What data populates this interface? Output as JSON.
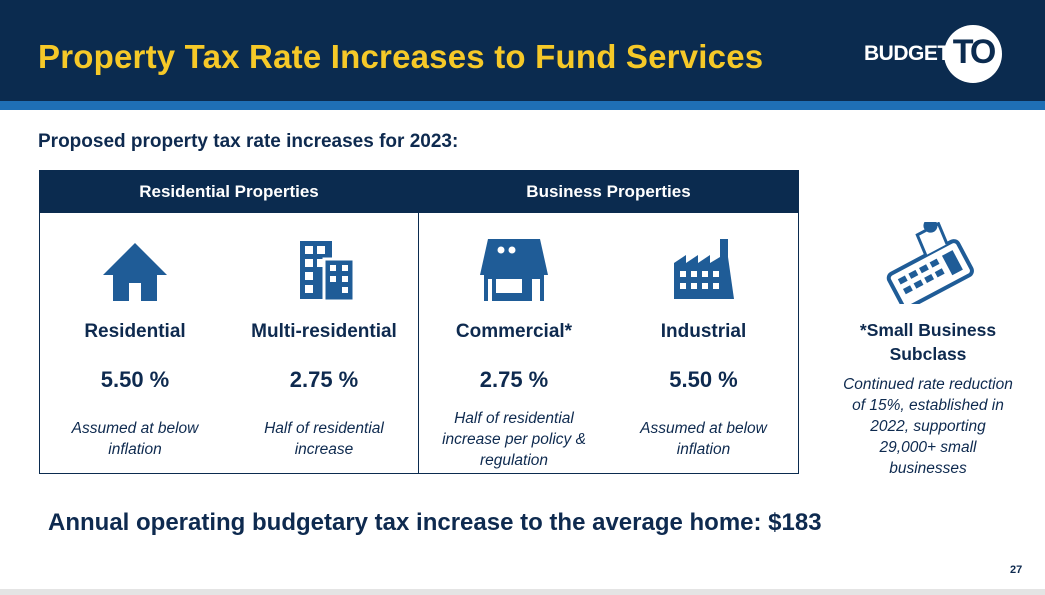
{
  "header": {
    "title": "Property Tax Rate Increases to Fund Services",
    "logo_text": "BUDGET",
    "logo_mark": "TO"
  },
  "subtitle": "Proposed property tax rate increases for 2023:",
  "table": {
    "headers": [
      "Residential Properties",
      "Business Properties"
    ],
    "columns": [
      {
        "icon": "house-icon",
        "label": "Residential",
        "rate": "5.50 %",
        "note": "Assumed at below inflation"
      },
      {
        "icon": "apartment-building-icon",
        "label": "Multi-residential",
        "rate": "2.75 %",
        "note": "Half of residential increase"
      },
      {
        "icon": "storefront-icon",
        "label": "Commercial*",
        "rate": "2.75 %",
        "note": "Half of residential increase per policy & regulation"
      },
      {
        "icon": "factory-icon",
        "label": "Industrial",
        "rate": "5.50 %",
        "note": "Assumed at below inflation"
      }
    ]
  },
  "small_business": {
    "icon": "calculator-receipt-icon",
    "label": "*Small Business Subclass",
    "note": "Continued rate reduction of 15%, established in 2022, supporting 29,000+ small businesses"
  },
  "footer": "Annual operating budgetary tax increase to the average home: $183",
  "page_number": "27",
  "colors": {
    "navy": "#0b2b4f",
    "accent_blue": "#1f6fb5",
    "title_yellow": "#f6c928",
    "icon_blue": "#1f5c97"
  }
}
